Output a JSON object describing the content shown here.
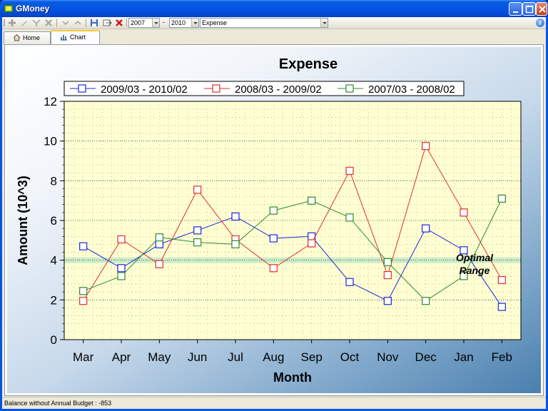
{
  "window": {
    "title": "GMoney"
  },
  "toolbar": {
    "year_from": "2007",
    "dash": "-",
    "year_to": "2010",
    "category": "Expense",
    "icons": [
      "add-icon",
      "edit-icon",
      "filter-icon",
      "delete-icon",
      "expand-icon",
      "collapse-icon",
      "save-icon",
      "export-icon",
      "clear-icon",
      "help-icon"
    ]
  },
  "tabs": [
    {
      "label": "Home",
      "icon": "home-icon"
    },
    {
      "label": "Chart",
      "icon": "chart-icon",
      "active": true
    }
  ],
  "status": {
    "text": "Balance without Annual Budget : -853"
  },
  "annotation": {
    "line1": "Optimal",
    "line2": "Range"
  },
  "chart_data": {
    "type": "line",
    "title": "Expense",
    "xlabel": "Month",
    "ylabel": "Amount (10^3)",
    "categories": [
      "Mar",
      "Apr",
      "May",
      "Jun",
      "Jul",
      "Aug",
      "Sep",
      "Oct",
      "Nov",
      "Dec",
      "Jan",
      "Feb"
    ],
    "ylim": [
      0,
      12
    ],
    "yticks": [
      0,
      2,
      4,
      6,
      8,
      10,
      12
    ],
    "grid": true,
    "legend_position": "top",
    "optimal_range_value": 4,
    "colors": {
      "plot_bg": "#ffffd2",
      "band": "#c6ecc6"
    },
    "series": [
      {
        "name": "2009/03 - 2010/02",
        "color": "#1c28d8",
        "values": [
          4.7,
          3.6,
          4.8,
          5.5,
          6.2,
          5.1,
          5.2,
          2.9,
          1.95,
          5.6,
          4.5,
          1.65
        ]
      },
      {
        "name": "2008/03 - 2009/02",
        "color": "#e03030",
        "values": [
          1.95,
          5.05,
          3.8,
          7.55,
          5.05,
          3.6,
          4.85,
          8.5,
          3.25,
          9.75,
          6.4,
          3.0
        ]
      },
      {
        "name": "2007/03 - 2008/02",
        "color": "#2e8b2e",
        "values": [
          2.45,
          3.2,
          5.15,
          4.9,
          4.8,
          6.5,
          7.0,
          6.15,
          3.9,
          1.95,
          3.2,
          7.1
        ]
      }
    ]
  }
}
